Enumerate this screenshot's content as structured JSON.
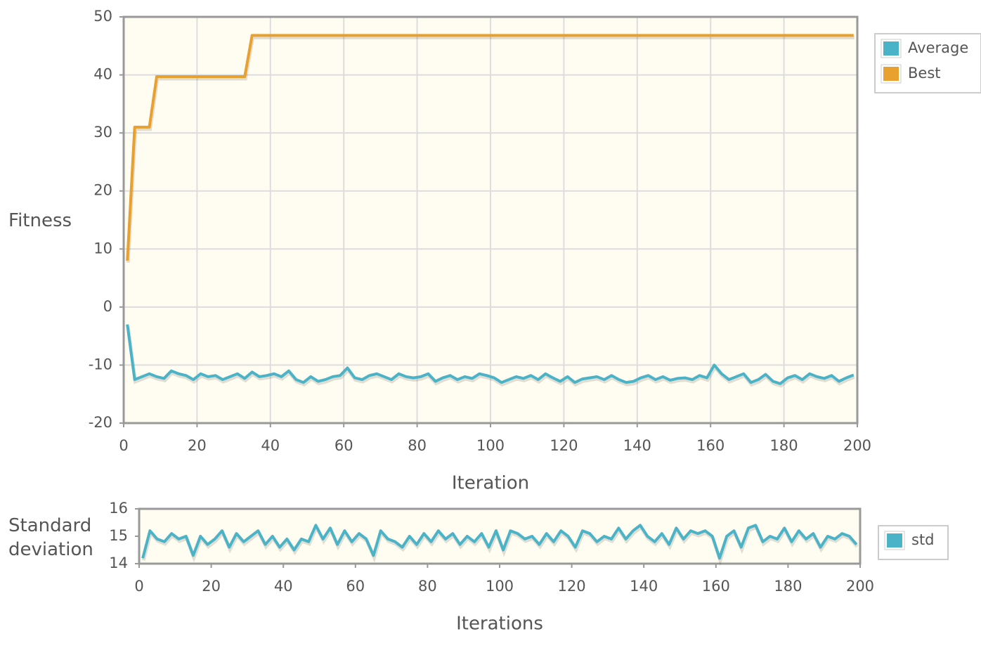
{
  "chart_data": [
    {
      "type": "line",
      "xlabel": "Iteration",
      "ylabel": "Fitness",
      "x": [
        1,
        3,
        5,
        7,
        9,
        11,
        13,
        15,
        17,
        19,
        21,
        23,
        25,
        27,
        29,
        31,
        33,
        35,
        37,
        39,
        41,
        43,
        45,
        47,
        49,
        51,
        53,
        55,
        57,
        59,
        61,
        63,
        65,
        67,
        69,
        71,
        73,
        75,
        77,
        79,
        81,
        83,
        85,
        87,
        89,
        91,
        93,
        95,
        97,
        99,
        101,
        103,
        105,
        107,
        109,
        111,
        113,
        115,
        117,
        119,
        121,
        123,
        125,
        127,
        129,
        131,
        133,
        135,
        137,
        139,
        141,
        143,
        145,
        147,
        149,
        151,
        153,
        155,
        157,
        159,
        161,
        163,
        165,
        167,
        169,
        171,
        173,
        175,
        177,
        179,
        181,
        183,
        185,
        187,
        189,
        191,
        193,
        195,
        197,
        199
      ],
      "series": [
        {
          "name": "Average",
          "color": "#4bb3c7",
          "values": [
            -3,
            -12.5,
            -12,
            -11.5,
            -12,
            -12.3,
            -11,
            -11.5,
            -11.8,
            -12.5,
            -11.5,
            -12,
            -11.8,
            -12.5,
            -12,
            -11.5,
            -12.3,
            -11.2,
            -12,
            -11.8,
            -11.5,
            -12,
            -11,
            -12.5,
            -13,
            -12,
            -12.8,
            -12.5,
            -12,
            -11.8,
            -10.5,
            -12.2,
            -12.5,
            -11.8,
            -11.5,
            -12,
            -12.5,
            -11.5,
            -12,
            -12.2,
            -12,
            -11.5,
            -12.8,
            -12.2,
            -11.8,
            -12.5,
            -12,
            -12.3,
            -11.5,
            -11.8,
            -12.2,
            -13,
            -12.5,
            -12,
            -12.3,
            -11.8,
            -12.5,
            -11.5,
            -12.2,
            -12.8,
            -12,
            -13,
            -12.4,
            -12.2,
            -12,
            -12.5,
            -11.8,
            -12.5,
            -13,
            -12.8,
            -12.2,
            -11.8,
            -12.5,
            -12,
            -12.6,
            -12.3,
            -12.2,
            -12.5,
            -11.8,
            -12.2,
            -10,
            -11.5,
            -12.5,
            -12,
            -11.5,
            -13,
            -12.5,
            -11.6,
            -12.8,
            -13.2,
            -12.2,
            -11.8,
            -12.5,
            -11.5,
            -12,
            -12.3,
            -11.8,
            -12.8,
            -12.2,
            -11.7
          ]
        },
        {
          "name": "Best",
          "color": "#e8a02e",
          "values": [
            8,
            31,
            31,
            31,
            39.7,
            39.7,
            39.7,
            39.7,
            39.7,
            39.7,
            39.7,
            39.7,
            39.7,
            39.7,
            39.7,
            39.7,
            39.7,
            46.8,
            46.8,
            46.8,
            46.8,
            46.8,
            46.8,
            46.8,
            46.8,
            46.8,
            46.8,
            46.8,
            46.8,
            46.8,
            46.8,
            46.8,
            46.8,
            46.8,
            46.8,
            46.8,
            46.8,
            46.8,
            46.8,
            46.8,
            46.8,
            46.8,
            46.8,
            46.8,
            46.8,
            46.8,
            46.8,
            46.8,
            46.8,
            46.8,
            46.8,
            46.8,
            46.8,
            46.8,
            46.8,
            46.8,
            46.8,
            46.8,
            46.8,
            46.8,
            46.8,
            46.8,
            46.8,
            46.8,
            46.8,
            46.8,
            46.8,
            46.8,
            46.8,
            46.8,
            46.8,
            46.8,
            46.8,
            46.8,
            46.8,
            46.8,
            46.8,
            46.8,
            46.8,
            46.8,
            46.8,
            46.8,
            46.8,
            46.8,
            46.8,
            46.8,
            46.8,
            46.8,
            46.8,
            46.8,
            46.8,
            46.8,
            46.8,
            46.8,
            46.8,
            46.8,
            46.8,
            46.8,
            46.8,
            46.8
          ]
        }
      ],
      "xlim": [
        0,
        200
      ],
      "xticks": [
        0,
        20,
        40,
        60,
        80,
        100,
        120,
        140,
        160,
        180,
        200
      ],
      "ylim": [
        -20,
        50
      ],
      "yticks": [
        -20,
        -10,
        0,
        10,
        20,
        30,
        40,
        50
      ],
      "grid": true,
      "legend": "right"
    },
    {
      "type": "line",
      "xlabel": "Iterations",
      "ylabel": "Standard deviation",
      "x": [
        1,
        3,
        5,
        7,
        9,
        11,
        13,
        15,
        17,
        19,
        21,
        23,
        25,
        27,
        29,
        31,
        33,
        35,
        37,
        39,
        41,
        43,
        45,
        47,
        49,
        51,
        53,
        55,
        57,
        59,
        61,
        63,
        65,
        67,
        69,
        71,
        73,
        75,
        77,
        79,
        81,
        83,
        85,
        87,
        89,
        91,
        93,
        95,
        97,
        99,
        101,
        103,
        105,
        107,
        109,
        111,
        113,
        115,
        117,
        119,
        121,
        123,
        125,
        127,
        129,
        131,
        133,
        135,
        137,
        139,
        141,
        143,
        145,
        147,
        149,
        151,
        153,
        155,
        157,
        159,
        161,
        163,
        165,
        167,
        169,
        171,
        173,
        175,
        177,
        179,
        181,
        183,
        185,
        187,
        189,
        191,
        193,
        195,
        197,
        199
      ],
      "series": [
        {
          "name": "std",
          "color": "#4bb3c7",
          "values": [
            14.2,
            15.2,
            14.9,
            14.8,
            15.1,
            14.9,
            15,
            14.3,
            15,
            14.7,
            14.9,
            15.2,
            14.6,
            15.1,
            14.8,
            15,
            15.2,
            14.7,
            15,
            14.6,
            14.9,
            14.5,
            14.9,
            14.8,
            15.4,
            14.9,
            15.3,
            14.7,
            15.2,
            14.8,
            15.1,
            14.9,
            14.3,
            15.2,
            14.9,
            14.8,
            14.6,
            15,
            14.7,
            15.1,
            14.8,
            15.2,
            14.9,
            15.1,
            14.7,
            15,
            14.8,
            15.1,
            14.6,
            15.2,
            14.5,
            15.2,
            15.1,
            14.9,
            15,
            14.7,
            15.1,
            14.8,
            15.2,
            15,
            14.6,
            15.2,
            15.1,
            14.8,
            15,
            14.9,
            15.3,
            14.9,
            15.2,
            15.4,
            15,
            14.8,
            15.1,
            14.7,
            15.3,
            14.9,
            15.2,
            15.1,
            15.2,
            15,
            14.2,
            15,
            15.2,
            14.6,
            15.3,
            15.4,
            14.8,
            15,
            14.9,
            15.3,
            14.8,
            15.2,
            14.9,
            15.1,
            14.6,
            15,
            14.9,
            15.1,
            15,
            14.7
          ]
        }
      ],
      "xlim": [
        0,
        200
      ],
      "xticks": [
        0,
        20,
        40,
        60,
        80,
        100,
        120,
        140,
        160,
        180,
        200
      ],
      "ylim": [
        14,
        16
      ],
      "yticks": [
        14,
        15,
        16
      ],
      "grid": false,
      "legend": "right"
    }
  ]
}
